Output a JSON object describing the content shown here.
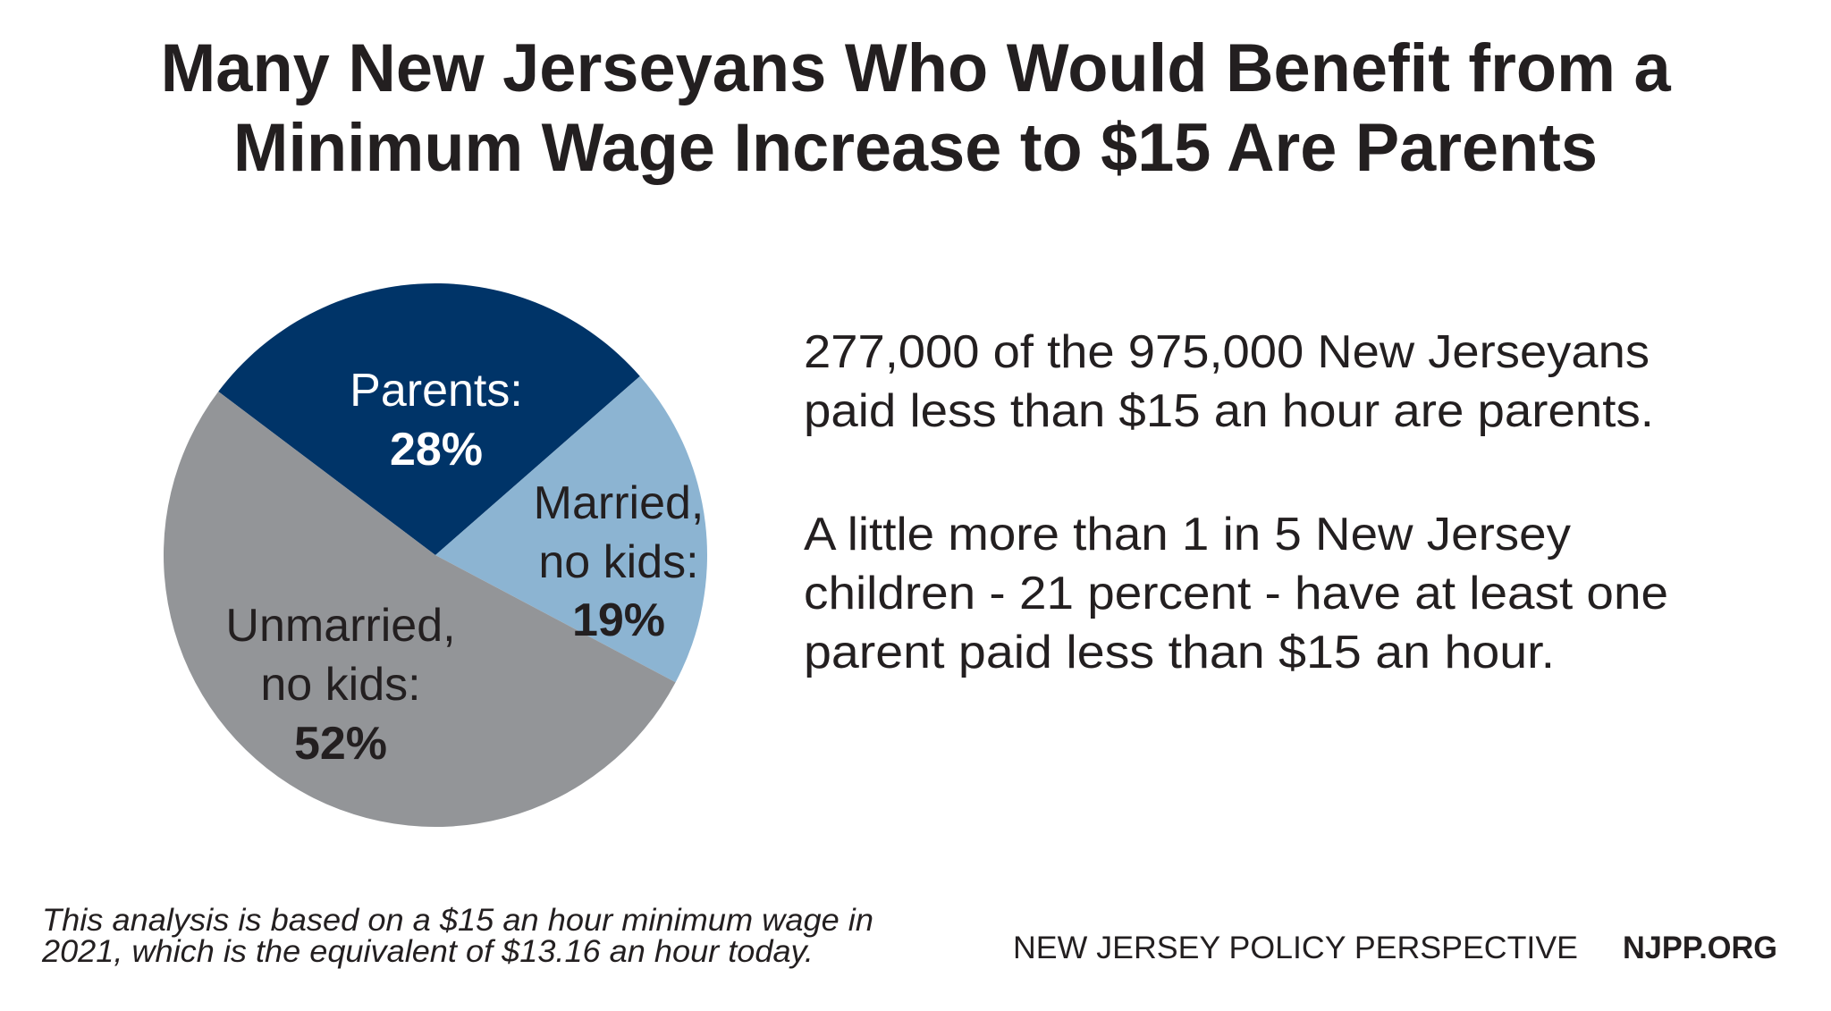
{
  "title": {
    "lines": [
      "Many New Jerseyans Who Would Benefit from a",
      "Minimum Wage Increase to $15 Are Parents"
    ]
  },
  "chart_data": {
    "type": "pie",
    "title": "Many New Jerseyans Who Would Benefit from a Minimum Wage Increase to $15 Are Parents",
    "categories": [
      "Parents",
      "Married, no kids",
      "Unmarried, no kids"
    ],
    "values": [
      28,
      19,
      52
    ],
    "unit": "%",
    "colors": [
      "#003468",
      "#8cb4d2",
      "#939598"
    ],
    "start_angle_deg": 307,
    "legend": "none (labels inside slices)",
    "labels": [
      {
        "lines": [
          "Parents:"
        ],
        "pct": "28%"
      },
      {
        "lines": [
          "Married,",
          "no kids:"
        ],
        "pct": "19%"
      },
      {
        "lines": [
          "Unmarried,",
          "no kids:"
        ],
        "pct": "52%"
      }
    ]
  },
  "body": {
    "paragraph1": [
      "277,000 of the 975,000 New Jerseyans",
      "paid less than $15 an hour are parents."
    ],
    "paragraph2": [
      "A little more than 1 in 5 New Jersey",
      "children - 21 percent - have at least one",
      "parent paid less than $15 an hour."
    ]
  },
  "footnote": [
    "This analysis is based on a $15 an hour minimum wage in",
    "2021, which is the equivalent of $13.16 an hour today."
  ],
  "footer": {
    "organization": "NEW JERSEY POLICY PERSPECTIVE",
    "website": "NJPP.ORG"
  },
  "colors": {
    "text": "#231f20",
    "navy": "#003468",
    "light_blue": "#8cb4d2",
    "gray": "#939598"
  }
}
